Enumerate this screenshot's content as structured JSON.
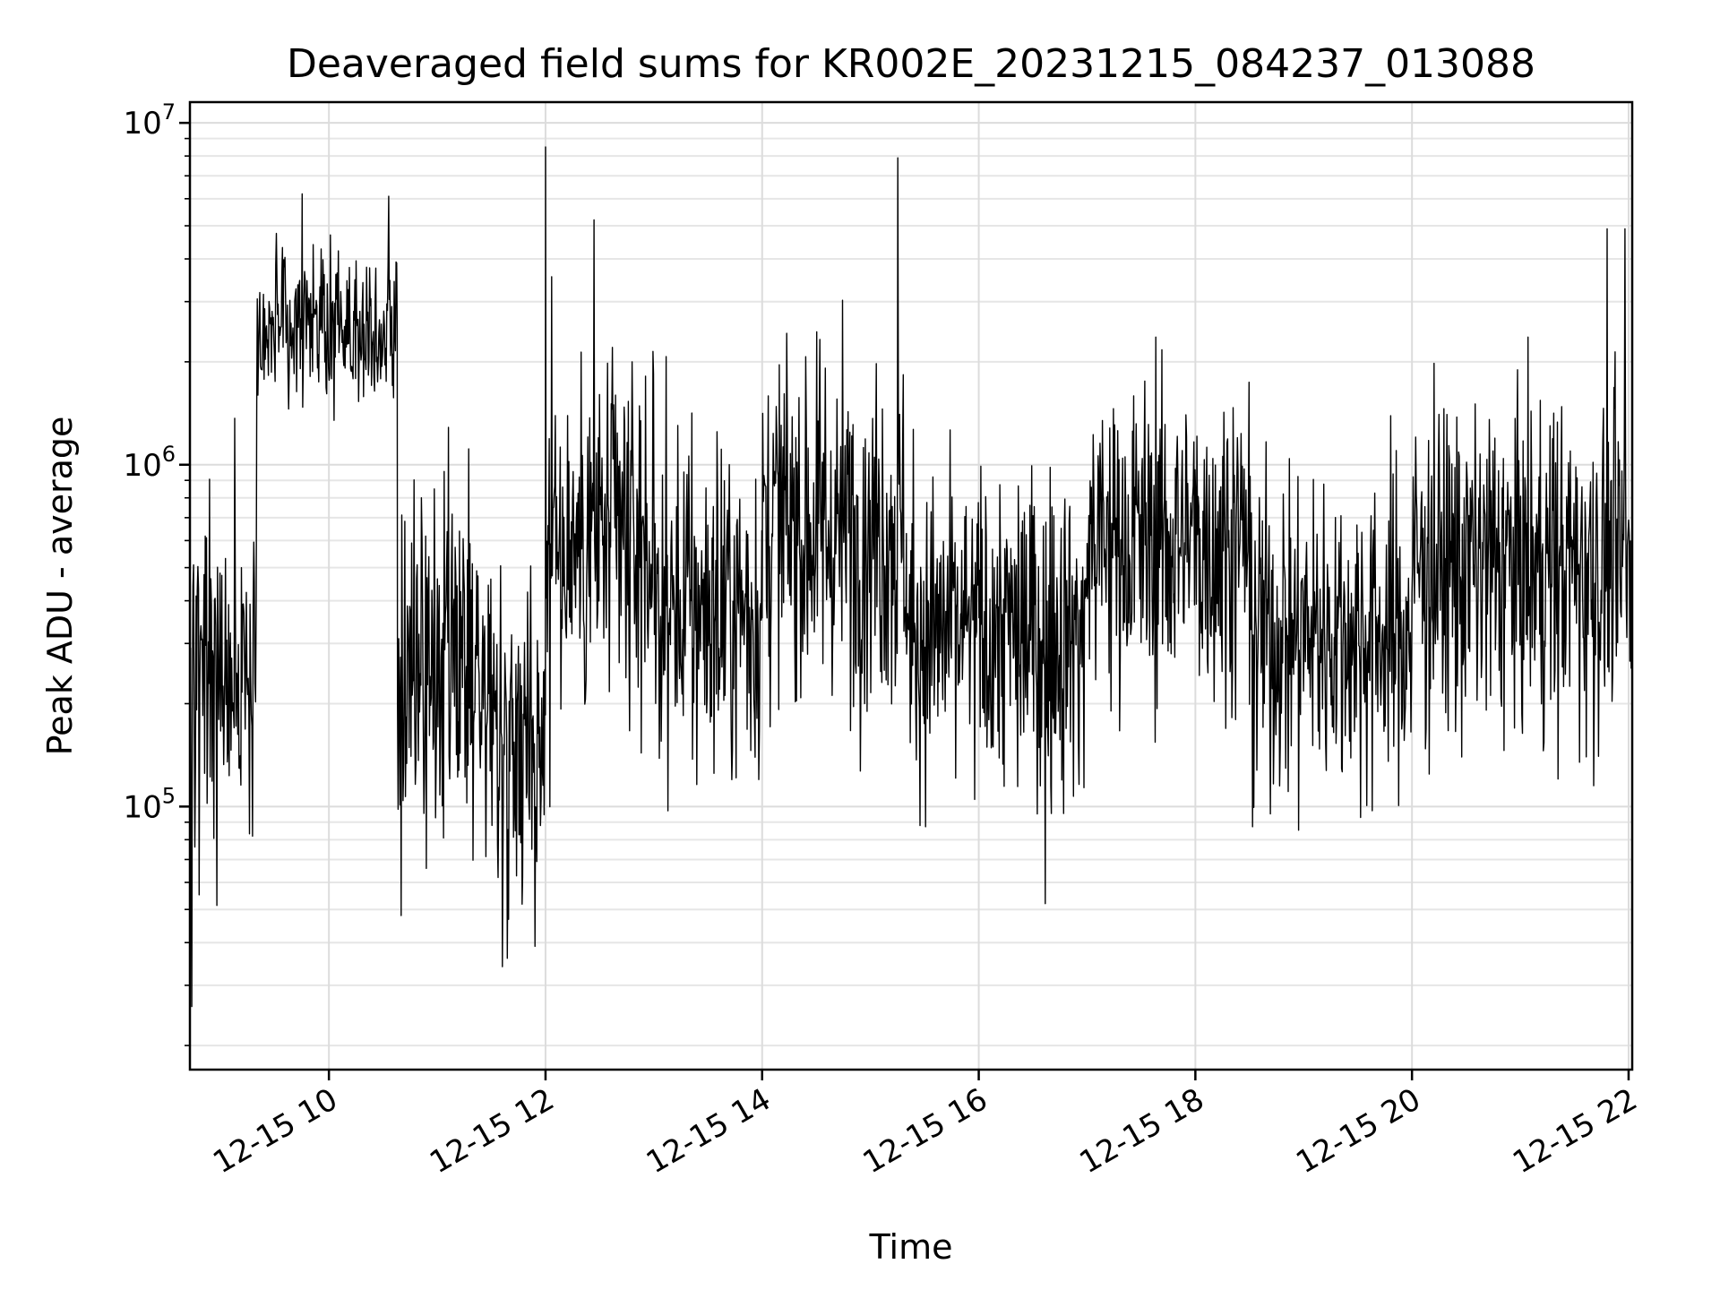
{
  "chart_data": {
    "type": "line",
    "title": "Deaveraged field sums for KR002E_20231215_084237_013088",
    "xlabel": "Time",
    "ylabel": "Peak ADU - average",
    "yscale": "log",
    "ylim": [
      17000,
      11500000
    ],
    "xlim": [
      "2023-12-15 08:43",
      "2023-12-15 22:02"
    ],
    "grid": true,
    "x_ticks": [
      {
        "value": "2023-12-15 10:00",
        "label": "12-15 10"
      },
      {
        "value": "2023-12-15 12:00",
        "label": "12-15 12"
      },
      {
        "value": "2023-12-15 14:00",
        "label": "12-15 14"
      },
      {
        "value": "2023-12-15 16:00",
        "label": "12-15 16"
      },
      {
        "value": "2023-12-15 18:00",
        "label": "12-15 18"
      },
      {
        "value": "2023-12-15 20:00",
        "label": "12-15 20"
      },
      {
        "value": "2023-12-15 22:00",
        "label": "12-15 22"
      }
    ],
    "y_ticks": [
      {
        "value": 100000,
        "base": "10",
        "exp": "5"
      },
      {
        "value": 1000000,
        "base": "10",
        "exp": "6"
      },
      {
        "value": 10000000,
        "base": "10",
        "exp": "7"
      }
    ],
    "series": [
      {
        "color": "#000000",
        "segments": [
          {
            "start": "2023-12-15 08:43",
            "end": "2023-12-15 09:20",
            "median": 250000,
            "spread": 0.45
          },
          {
            "start": "2023-12-15 09:20",
            "end": "2023-12-15 10:38",
            "median": 2500000,
            "spread": 0.18
          },
          {
            "start": "2023-12-15 10:38",
            "end": "2023-12-15 11:30",
            "median": 230000,
            "spread": 0.42
          },
          {
            "start": "2023-12-15 11:30",
            "end": "2023-12-15 12:00",
            "median": 170000,
            "spread": 0.35
          },
          {
            "start": "2023-12-15 12:00",
            "end": "2023-12-15 13:00",
            "median": 600000,
            "spread": 0.42
          },
          {
            "start": "2023-12-15 13:00",
            "end": "2023-12-15 14:00",
            "median": 380000,
            "spread": 0.42
          },
          {
            "start": "2023-12-15 14:00",
            "end": "2023-12-15 15:20",
            "median": 650000,
            "spread": 0.42
          },
          {
            "start": "2023-12-15 15:20",
            "end": "2023-12-15 17:00",
            "median": 320000,
            "spread": 0.38
          },
          {
            "start": "2023-12-15 17:00",
            "end": "2023-12-15 18:30",
            "median": 600000,
            "spread": 0.38
          },
          {
            "start": "2023-12-15 18:30",
            "end": "2023-12-15 20:00",
            "median": 320000,
            "spread": 0.38
          },
          {
            "start": "2023-12-15 20:00",
            "end": "2023-12-15 22:02",
            "median": 500000,
            "spread": 0.4
          }
        ],
        "spikes": [
          {
            "time": "2023-12-15 08:44",
            "value": 26000
          },
          {
            "time": "2023-12-15 09:45",
            "value": 6200000
          },
          {
            "time": "2023-12-15 10:33",
            "value": 6100000
          },
          {
            "time": "2023-12-15 10:40",
            "value": 48000
          },
          {
            "time": "2023-12-15 11:36",
            "value": 34000
          },
          {
            "time": "2023-12-15 11:54",
            "value": 39000
          },
          {
            "time": "2023-12-15 12:00",
            "value": 8500000
          },
          {
            "time": "2023-12-15 12:27",
            "value": 5200000
          },
          {
            "time": "2023-12-15 15:15",
            "value": 7900000
          },
          {
            "time": "2023-12-15 16:37",
            "value": 52000
          },
          {
            "time": "2023-12-15 21:48",
            "value": 4900000
          },
          {
            "time": "2023-12-15 21:58",
            "value": 4900000
          }
        ]
      }
    ]
  }
}
